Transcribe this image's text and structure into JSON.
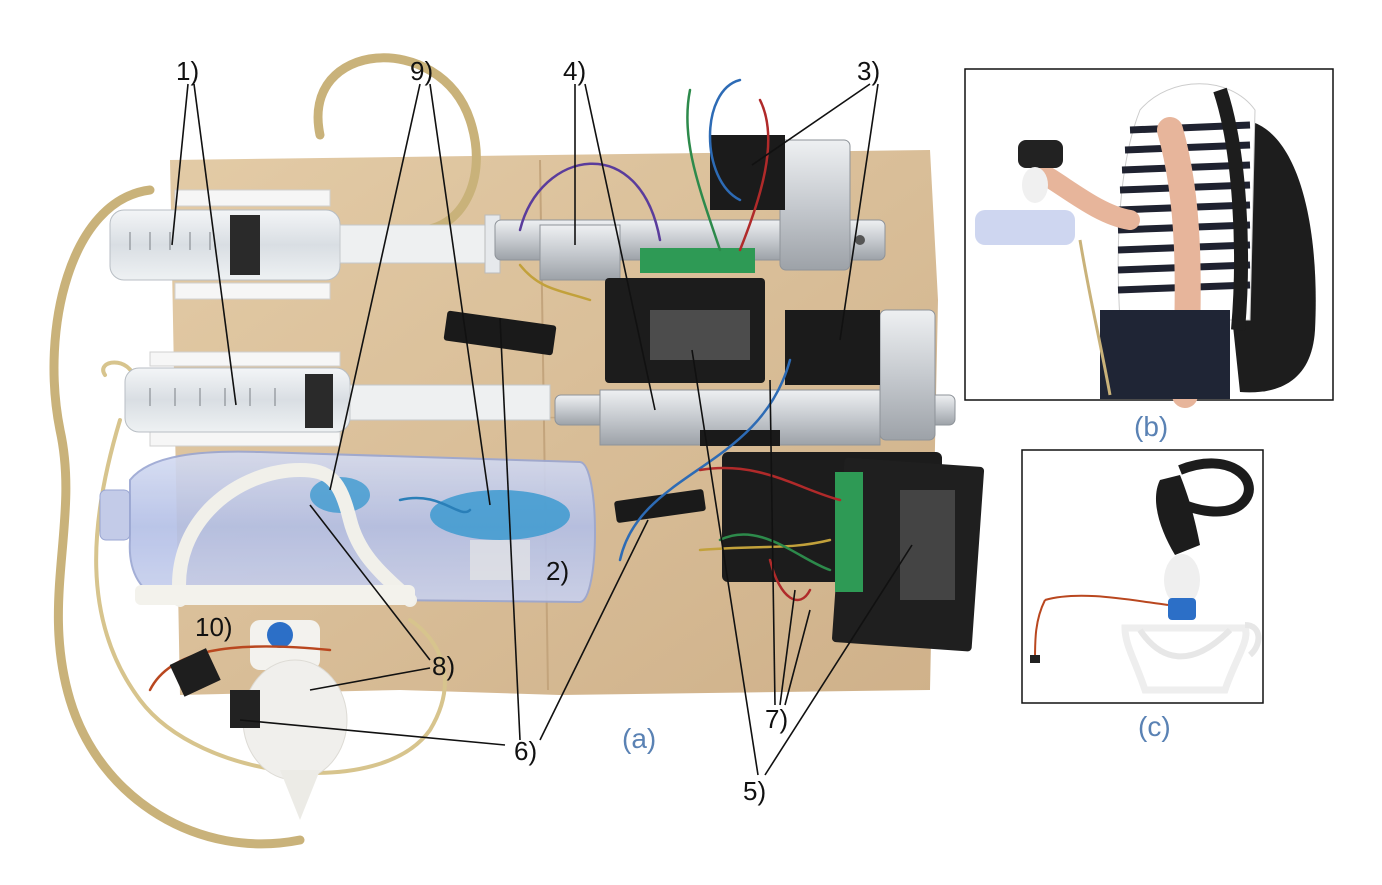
{
  "labels": {
    "l1": "1)",
    "l2": "2)",
    "l3": "3)",
    "l4": "4)",
    "l5": "5)",
    "l6": "6)",
    "l7": "7)",
    "l8": "8)",
    "l9": "9)",
    "l10": "10)"
  },
  "panels": {
    "a": "(a)",
    "b": "(b)",
    "c": "(c)"
  },
  "colors": {
    "board": "#d9bf98",
    "panel_label": "#5a82b4",
    "tube": "#c9b27a",
    "driver": "#1c1c1c",
    "terminal": "#2e9a55"
  }
}
